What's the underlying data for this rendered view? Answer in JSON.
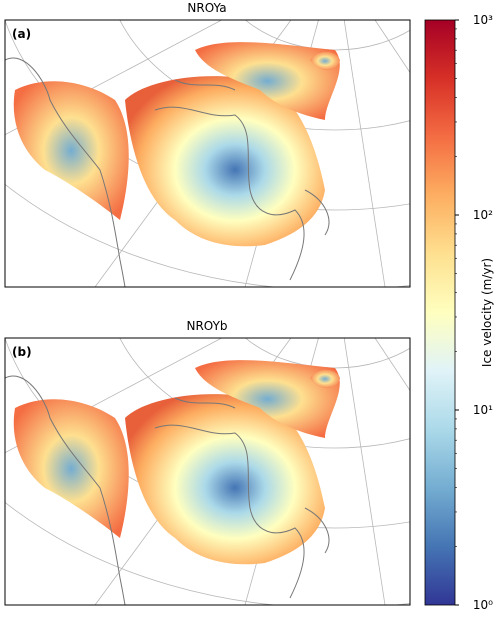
{
  "panels": [
    {
      "title": "NROYa",
      "label": "(a)"
    },
    {
      "title": "NROYb",
      "label": "(b)"
    }
  ],
  "colorbar": {
    "label": "Ice velocity (m/yr)",
    "scale": "log",
    "lim": [
      1,
      1000
    ],
    "ticks": [
      {
        "value": 1,
        "label": "10⁰"
      },
      {
        "value": 10,
        "label": "10¹"
      },
      {
        "value": 100,
        "label": "10²"
      },
      {
        "value": 1000,
        "label": "10³"
      }
    ],
    "colors": [
      "#313695",
      "#4575b4",
      "#74add1",
      "#abd9e9",
      "#e0f3f8",
      "#ffffbf",
      "#fee090",
      "#fdae61",
      "#f46d43",
      "#d73027",
      "#a50026"
    ]
  }
}
